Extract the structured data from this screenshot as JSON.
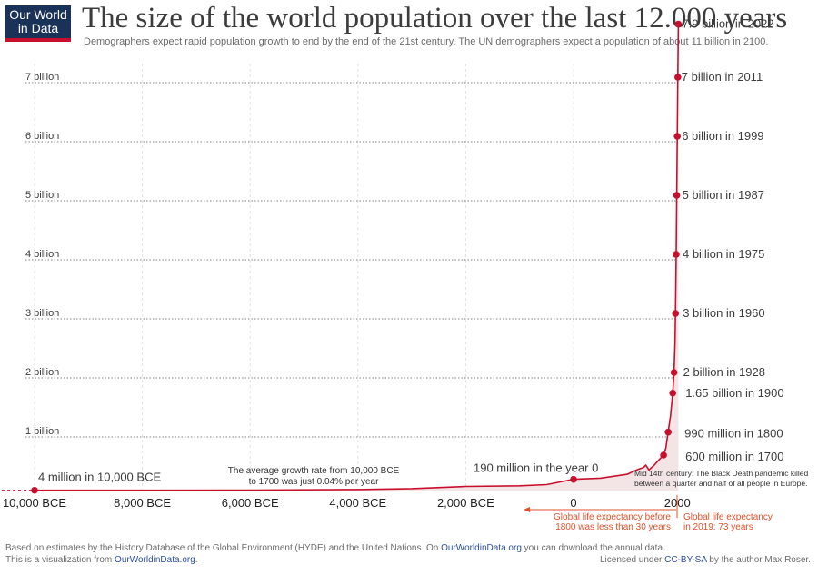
{
  "header": {
    "logo_line1": "Our World",
    "logo_line2": "in Data",
    "title": "The size of the world population over the last 12.000 years",
    "subtitle": "Demographers expect rapid population growth to end by the end of the 21st century. The UN demographers expect a population of about 11 billion in 2100."
  },
  "footer": {
    "line1_prefix": "Based on estimates by the History Database of the Global Environment (HYDE) and the United Nations. On ",
    "line1_link": "OurWorldinData.org",
    "line1_suffix": " you can download the annual data.",
    "line2_prefix": "This is a visualization from ",
    "line2_link": "OurWorldinData.org",
    "line2_suffix": ".",
    "license_prefix": "Licensed under ",
    "license_link": "CC-BY-SA",
    "license_suffix": " by the author Max Roser."
  },
  "colors": {
    "line": "#c8102e",
    "area": "#f3e4e6",
    "orange": "#e0522b",
    "text": "#3c3c3c"
  },
  "chart_data": {
    "type": "line",
    "title": "The size of the world population over the last 12.000 years",
    "xlim": [
      -10500,
      2100
    ],
    "ylim": [
      0,
      7.4
    ],
    "y_ticks": [
      {
        "value": 1,
        "label": "1 billion"
      },
      {
        "value": 2,
        "label": "2 billion"
      },
      {
        "value": 3,
        "label": "3 billion"
      },
      {
        "value": 4,
        "label": "4 billion"
      },
      {
        "value": 5,
        "label": "5 billion"
      },
      {
        "value": 6,
        "label": "6 billion"
      },
      {
        "value": 7,
        "label": "7 billion"
      }
    ],
    "x_ticks": [
      {
        "value": -10000,
        "label": "10,000 BCE"
      },
      {
        "value": -8000,
        "label": "8,000 BCE"
      },
      {
        "value": -6000,
        "label": "6,000 BCE"
      },
      {
        "value": -4000,
        "label": "4,000 BCE"
      },
      {
        "value": -2000,
        "label": "2,000 BCE"
      },
      {
        "value": 0,
        "label": "0"
      },
      {
        "value": 2000,
        "label": "2000"
      }
    ],
    "x": [
      -10000,
      -8000,
      -6000,
      -4000,
      -3000,
      -2000,
      -1000,
      -500,
      0,
      500,
      1000,
      1100,
      1200,
      1300,
      1340,
      1400,
      1500,
      1600,
      1700,
      1750,
      1800,
      1850,
      1900,
      1928,
      1950,
      1960,
      1975,
      1987,
      1999,
      2011,
      2022
    ],
    "y": [
      0.004,
      0.005,
      0.007,
      0.017,
      0.033,
      0.07,
      0.08,
      0.1,
      0.19,
      0.21,
      0.275,
      0.32,
      0.36,
      0.39,
      0.43,
      0.35,
      0.43,
      0.52,
      0.6,
      0.72,
      0.99,
      1.26,
      1.65,
      2.0,
      2.5,
      3.0,
      4.0,
      5.0,
      6.0,
      7.0,
      7.9
    ],
    "labeled_points": [
      {
        "x": -10000,
        "y": 0.004,
        "label": "4 million in 10,000 BCE"
      },
      {
        "x": 0,
        "y": 0.19,
        "label": "190 million in the year 0"
      },
      {
        "x": 1700,
        "y": 0.6,
        "label": "600 million in 1700"
      },
      {
        "x": 1800,
        "y": 0.99,
        "label": "990 million in 1800"
      },
      {
        "x": 1900,
        "y": 1.65,
        "label": "1.65 billion in 1900"
      },
      {
        "x": 1928,
        "y": 2.0,
        "label": "2 billion in 1928"
      },
      {
        "x": 1960,
        "y": 3.0,
        "label": "3 billion in 1960"
      },
      {
        "x": 1975,
        "y": 4.0,
        "label": "4 billion in 1975"
      },
      {
        "x": 1987,
        "y": 5.0,
        "label": "5 billion in 1987"
      },
      {
        "x": 1999,
        "y": 6.0,
        "label": "6 billion in 1999"
      },
      {
        "x": 2011,
        "y": 7.0,
        "label": "7 billion in 2011"
      },
      {
        "x": 2022,
        "y": 7.9,
        "label": "7.9 billion in 2022"
      }
    ],
    "annotations": {
      "growth_line1": "The average growth rate from 10,000 BCE",
      "growth_line2": "to 1700 was just  0.04%.per year",
      "plague_line1": "Mid 14th century: The Black Death pandemic killed",
      "plague_line2": "between a quarter and half of all people in Europe.",
      "life_before_line1": "Global life expectancy before",
      "life_before_line2": "1800 was less than 30 years",
      "life_2019_line1": "Global life expectancy",
      "life_2019_line2": "in 2019: 73 years"
    },
    "grid": true,
    "legend": "none"
  }
}
